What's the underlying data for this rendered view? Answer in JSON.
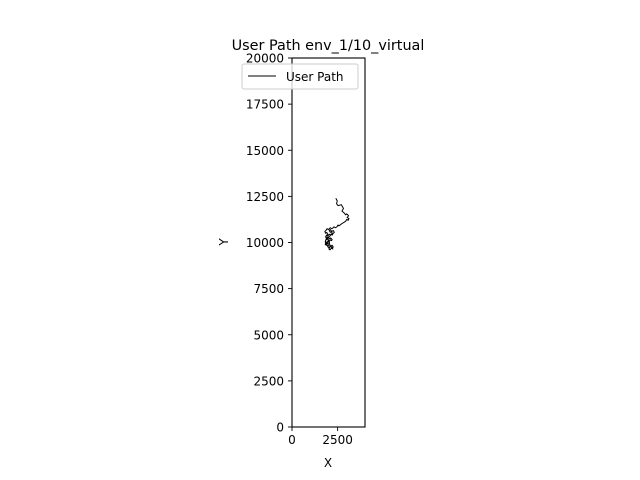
{
  "chart_data": {
    "type": "line",
    "title": "User Path env_1/10_virtual",
    "xlabel": "X",
    "ylabel": "Y",
    "xlim": [
      0,
      4000
    ],
    "ylim": [
      0,
      20000
    ],
    "xticks": [
      0,
      2500
    ],
    "xtick_labels": [
      "0",
      "2500"
    ],
    "yticks": [
      0,
      2500,
      5000,
      7500,
      10000,
      12500,
      15000,
      17500,
      20000
    ],
    "ytick_labels": [
      "0",
      "2500",
      "5000",
      "7500",
      "10000",
      "12500",
      "15000",
      "17500",
      "20000"
    ],
    "grid": false,
    "legend_position": "top",
    "series": [
      {
        "name": "User Path",
        "color": "#000000",
        "x": [
          2400,
          2480,
          2440,
          2520,
          2700,
          2760,
          2820,
          2740,
          2860,
          2940,
          3000,
          3100,
          3020,
          3120,
          3080,
          3000,
          2940,
          2860,
          2780,
          2700,
          2640,
          2560,
          2520,
          2460,
          2380,
          2300,
          2260,
          2180,
          2100,
          2000,
          1920,
          1860,
          1800,
          1840,
          1900,
          1960,
          1900,
          1860,
          1840,
          1900,
          1980,
          2060,
          2120,
          2200,
          2160,
          2100,
          2040,
          1980,
          1920,
          1880,
          1860,
          1820,
          1880,
          1960,
          2040,
          2120,
          2200,
          2260,
          2200,
          2140,
          2080,
          2020,
          2080,
          2160,
          2240,
          2180,
          2100,
          2040,
          1980,
          1920,
          1880,
          1940,
          2000,
          2060,
          2020,
          1960,
          1900,
          1860,
          1900,
          1960,
          2040,
          2120,
          2200,
          2160,
          2100,
          2040,
          2100,
          2180,
          2260,
          2320,
          2260,
          2200,
          2140,
          2080,
          2020,
          1960,
          1900,
          1860,
          1820,
          1860,
          1920,
          1980,
          2040,
          2100,
          2060
        ],
        "y": [
          12400,
          12250,
          12100,
          12000,
          12050,
          11950,
          11850,
          11700,
          11600,
          11500,
          11550,
          11450,
          11350,
          11300,
          11200,
          11250,
          11150,
          11100,
          11050,
          11000,
          10950,
          10900,
          10950,
          10850,
          10800,
          10850,
          10800,
          10750,
          10800,
          10700,
          10750,
          10650,
          10600,
          10500,
          10550,
          10450,
          10400,
          10350,
          10300,
          10250,
          10300,
          10200,
          10250,
          10150,
          10100,
          10150,
          10050,
          10100,
          10000,
          9950,
          10050,
          9900,
          9850,
          9950,
          9900,
          9800,
          9850,
          9750,
          9700,
          9800,
          9750,
          9650,
          9600,
          9700,
          9650,
          9750,
          9800,
          9700,
          9750,
          9850,
          9900,
          10000,
          10050,
          9950,
          10100,
          10200,
          10150,
          10300,
          10400,
          10350,
          10450,
          10400,
          10500,
          10600,
          10550,
          10650,
          10700,
          10600,
          10650,
          10550,
          10500,
          10400,
          10450,
          10350,
          10300,
          10200,
          10250,
          10150,
          10050,
          9950,
          9850,
          9800,
          9900,
          9850,
          9750
        ]
      }
    ]
  }
}
